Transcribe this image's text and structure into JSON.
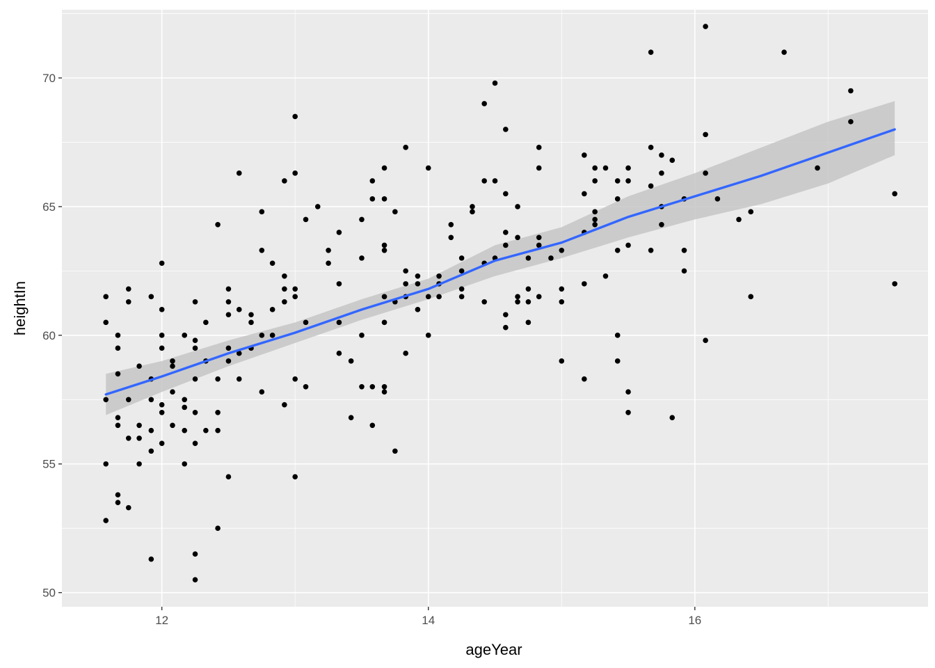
{
  "chart_data": {
    "type": "scatter",
    "title": "",
    "xlabel": "ageYear",
    "ylabel": "heightIn",
    "xlim": [
      11.25,
      17.75
    ],
    "ylim": [
      49.45,
      72.65
    ],
    "x_ticks": [
      12,
      14,
      16
    ],
    "x_tick_labels": [
      "12",
      "14",
      "16"
    ],
    "y_ticks": [
      50,
      55,
      60,
      65,
      70
    ],
    "y_tick_labels": [
      "50",
      "55",
      "60",
      "65",
      "70"
    ],
    "grid": true,
    "legend": "none",
    "colors": {
      "panel": "#ebebeb",
      "grid": "#ffffff",
      "points": "#000000",
      "fit_line": "#3366ff",
      "confidence_band": "#c6c6c6"
    },
    "points": [
      [
        11.58,
        61.5
      ],
      [
        11.58,
        60.5
      ],
      [
        11.58,
        57.5
      ],
      [
        11.58,
        55.0
      ],
      [
        11.58,
        52.8
      ],
      [
        11.67,
        60.0
      ],
      [
        11.67,
        59.5
      ],
      [
        11.67,
        58.5
      ],
      [
        11.67,
        56.8
      ],
      [
        11.67,
        56.5
      ],
      [
        11.67,
        53.8
      ],
      [
        11.67,
        53.5
      ],
      [
        11.75,
        61.8
      ],
      [
        11.75,
        61.3
      ],
      [
        11.75,
        57.5
      ],
      [
        11.75,
        56.0
      ],
      [
        11.75,
        53.3
      ],
      [
        11.83,
        58.8
      ],
      [
        11.83,
        56.5
      ],
      [
        11.83,
        56.0
      ],
      [
        11.83,
        55.0
      ],
      [
        11.92,
        61.5
      ],
      [
        11.92,
        58.3
      ],
      [
        11.92,
        57.5
      ],
      [
        11.92,
        56.3
      ],
      [
        11.92,
        55.5
      ],
      [
        11.92,
        51.3
      ],
      [
        12.0,
        62.8
      ],
      [
        12.0,
        61.0
      ],
      [
        12.0,
        60.0
      ],
      [
        12.0,
        59.5
      ],
      [
        12.0,
        57.3
      ],
      [
        12.0,
        57.0
      ],
      [
        12.0,
        55.8
      ],
      [
        12.08,
        59.0
      ],
      [
        12.08,
        58.8
      ],
      [
        12.08,
        57.8
      ],
      [
        12.08,
        56.5
      ],
      [
        12.17,
        60.0
      ],
      [
        12.17,
        57.5
      ],
      [
        12.17,
        57.2
      ],
      [
        12.17,
        56.3
      ],
      [
        12.17,
        55.0
      ],
      [
        12.25,
        61.3
      ],
      [
        12.25,
        59.8
      ],
      [
        12.25,
        59.5
      ],
      [
        12.25,
        58.3
      ],
      [
        12.25,
        57.0
      ],
      [
        12.25,
        55.8
      ],
      [
        12.25,
        51.5
      ],
      [
        12.25,
        50.5
      ],
      [
        12.33,
        60.5
      ],
      [
        12.33,
        59.0
      ],
      [
        12.33,
        56.3
      ],
      [
        12.42,
        64.3
      ],
      [
        12.42,
        58.3
      ],
      [
        12.42,
        57.0
      ],
      [
        12.42,
        56.3
      ],
      [
        12.42,
        52.5
      ],
      [
        12.5,
        61.8
      ],
      [
        12.5,
        61.3
      ],
      [
        12.5,
        60.8
      ],
      [
        12.5,
        59.5
      ],
      [
        12.5,
        59.0
      ],
      [
        12.5,
        54.5
      ],
      [
        12.58,
        66.3
      ],
      [
        12.58,
        61.0
      ],
      [
        12.58,
        59.3
      ],
      [
        12.58,
        58.3
      ],
      [
        12.67,
        60.8
      ],
      [
        12.67,
        60.5
      ],
      [
        12.67,
        59.5
      ],
      [
        12.75,
        64.8
      ],
      [
        12.75,
        63.3
      ],
      [
        12.75,
        60.0
      ],
      [
        12.75,
        57.8
      ],
      [
        12.83,
        62.8
      ],
      [
        12.83,
        61.0
      ],
      [
        12.83,
        60.0
      ],
      [
        12.92,
        66.0
      ],
      [
        12.92,
        62.3
      ],
      [
        12.92,
        61.8
      ],
      [
        12.92,
        61.3
      ],
      [
        12.92,
        57.3
      ],
      [
        13.0,
        68.5
      ],
      [
        13.0,
        66.3
      ],
      [
        13.0,
        61.8
      ],
      [
        13.0,
        61.5
      ],
      [
        13.0,
        58.3
      ],
      [
        13.0,
        54.5
      ],
      [
        13.08,
        64.5
      ],
      [
        13.08,
        60.5
      ],
      [
        13.08,
        58.0
      ],
      [
        13.17,
        65.0
      ],
      [
        13.25,
        63.3
      ],
      [
        13.25,
        62.8
      ],
      [
        13.33,
        64.0
      ],
      [
        13.33,
        62.0
      ],
      [
        13.33,
        60.5
      ],
      [
        13.33,
        59.3
      ],
      [
        13.42,
        59.0
      ],
      [
        13.42,
        56.8
      ],
      [
        13.5,
        64.5
      ],
      [
        13.5,
        63.0
      ],
      [
        13.5,
        60.0
      ],
      [
        13.5,
        58.0
      ],
      [
        13.58,
        66.0
      ],
      [
        13.58,
        65.3
      ],
      [
        13.58,
        58.0
      ],
      [
        13.58,
        56.5
      ],
      [
        13.67,
        66.5
      ],
      [
        13.67,
        65.3
      ],
      [
        13.67,
        63.5
      ],
      [
        13.67,
        63.3
      ],
      [
        13.67,
        61.5
      ],
      [
        13.67,
        60.5
      ],
      [
        13.67,
        58.0
      ],
      [
        13.67,
        57.8
      ],
      [
        13.75,
        64.8
      ],
      [
        13.75,
        61.3
      ],
      [
        13.75,
        55.5
      ],
      [
        13.83,
        67.3
      ],
      [
        13.83,
        62.5
      ],
      [
        13.83,
        62.0
      ],
      [
        13.83,
        61.5
      ],
      [
        13.83,
        59.3
      ],
      [
        13.92,
        62.3
      ],
      [
        13.92,
        62.0
      ],
      [
        13.92,
        61.0
      ],
      [
        14.0,
        66.5
      ],
      [
        14.0,
        61.5
      ],
      [
        14.0,
        60.0
      ],
      [
        14.08,
        62.3
      ],
      [
        14.08,
        62.0
      ],
      [
        14.08,
        61.5
      ],
      [
        14.17,
        64.3
      ],
      [
        14.17,
        63.8
      ],
      [
        14.25,
        63.0
      ],
      [
        14.25,
        62.5
      ],
      [
        14.25,
        61.8
      ],
      [
        14.25,
        61.5
      ],
      [
        14.33,
        65.0
      ],
      [
        14.33,
        64.8
      ],
      [
        14.42,
        69.0
      ],
      [
        14.42,
        66.0
      ],
      [
        14.42,
        62.8
      ],
      [
        14.42,
        61.3
      ],
      [
        14.5,
        69.8
      ],
      [
        14.5,
        66.0
      ],
      [
        14.5,
        63.0
      ],
      [
        14.58,
        68.0
      ],
      [
        14.58,
        65.5
      ],
      [
        14.58,
        64.0
      ],
      [
        14.58,
        63.5
      ],
      [
        14.58,
        60.8
      ],
      [
        14.58,
        60.3
      ],
      [
        14.67,
        65.0
      ],
      [
        14.67,
        63.8
      ],
      [
        14.67,
        61.5
      ],
      [
        14.67,
        61.3
      ],
      [
        14.75,
        63.0
      ],
      [
        14.75,
        61.8
      ],
      [
        14.75,
        61.3
      ],
      [
        14.75,
        60.5
      ],
      [
        14.83,
        67.3
      ],
      [
        14.83,
        66.5
      ],
      [
        14.83,
        63.8
      ],
      [
        14.83,
        63.5
      ],
      [
        14.83,
        61.5
      ],
      [
        14.92,
        63.0
      ],
      [
        15.0,
        63.3
      ],
      [
        15.0,
        61.8
      ],
      [
        15.0,
        61.3
      ],
      [
        15.0,
        59.0
      ],
      [
        15.17,
        67.0
      ],
      [
        15.17,
        65.5
      ],
      [
        15.17,
        64.0
      ],
      [
        15.17,
        62.0
      ],
      [
        15.17,
        58.3
      ],
      [
        15.25,
        66.5
      ],
      [
        15.25,
        66.0
      ],
      [
        15.25,
        64.8
      ],
      [
        15.25,
        64.5
      ],
      [
        15.25,
        64.3
      ],
      [
        15.33,
        66.5
      ],
      [
        15.33,
        62.3
      ],
      [
        15.42,
        66.0
      ],
      [
        15.42,
        65.3
      ],
      [
        15.42,
        63.3
      ],
      [
        15.42,
        60.0
      ],
      [
        15.42,
        59.0
      ],
      [
        15.5,
        66.5
      ],
      [
        15.5,
        66.0
      ],
      [
        15.5,
        63.5
      ],
      [
        15.5,
        57.8
      ],
      [
        15.5,
        57.0
      ],
      [
        15.67,
        71.0
      ],
      [
        15.67,
        67.3
      ],
      [
        15.67,
        65.8
      ],
      [
        15.67,
        63.3
      ],
      [
        15.75,
        67.0
      ],
      [
        15.75,
        66.3
      ],
      [
        15.75,
        65.0
      ],
      [
        15.75,
        64.3
      ],
      [
        15.83,
        66.8
      ],
      [
        15.83,
        56.8
      ],
      [
        15.92,
        65.3
      ],
      [
        15.92,
        63.3
      ],
      [
        15.92,
        62.5
      ],
      [
        16.08,
        72.0
      ],
      [
        16.08,
        67.8
      ],
      [
        16.08,
        66.3
      ],
      [
        16.08,
        59.8
      ],
      [
        16.17,
        65.3
      ],
      [
        16.33,
        64.5
      ],
      [
        16.42,
        64.8
      ],
      [
        16.42,
        61.5
      ],
      [
        16.67,
        71.0
      ],
      [
        16.92,
        66.5
      ],
      [
        17.17,
        69.5
      ],
      [
        17.17,
        68.3
      ],
      [
        17.5,
        65.5
      ],
      [
        17.5,
        62.0
      ]
    ],
    "fit": {
      "x": [
        11.58,
        12.0,
        12.5,
        13.0,
        13.5,
        14.0,
        14.5,
        15.0,
        15.5,
        16.0,
        16.5,
        17.0,
        17.5
      ],
      "y": [
        57.7,
        58.4,
        59.3,
        60.1,
        61.0,
        61.8,
        62.9,
        63.6,
        64.6,
        65.4,
        66.2,
        67.1,
        68.0
      ],
      "lower": [
        56.9,
        57.8,
        58.8,
        59.7,
        60.6,
        61.4,
        62.3,
        63.0,
        63.8,
        64.5,
        65.1,
        65.9,
        67.0
      ],
      "upper": [
        58.5,
        59.0,
        59.8,
        60.5,
        61.4,
        62.2,
        63.5,
        64.2,
        65.4,
        66.3,
        67.3,
        68.3,
        69.1
      ]
    }
  }
}
